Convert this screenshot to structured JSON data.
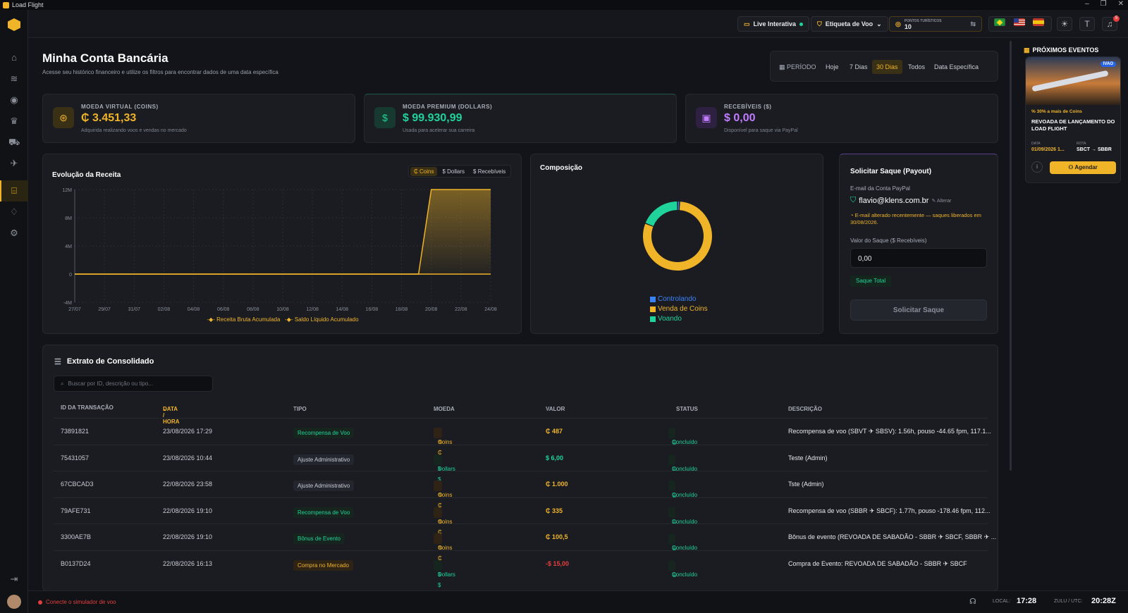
{
  "app": {
    "title": "Load Flight"
  },
  "topbar": {
    "live_label": "Live Interativa",
    "flight_tag_label": "Etiqueta de Voo",
    "points_label": "PONTOS TURÍSTICOS",
    "points_value": "10",
    "notifications_count": "5"
  },
  "page": {
    "title": "Minha Conta Bancária",
    "subtitle": "Acesse seu histórico financeiro e utilize os filtros para encontrar dados de uma data específica"
  },
  "period": {
    "label": "PERÍODO",
    "options": [
      "Hoje",
      "7 Dias",
      "30 Dias",
      "Todos",
      "Data Específica"
    ],
    "selected": "30 Dias"
  },
  "stats": [
    {
      "label": "MOEDA VIRTUAL (COINS)",
      "value": "₵ 3.451,33",
      "sub": "Adquirida realizando voos e vendas no mercado",
      "color": "#f0b429",
      "icon": "coins-icon"
    },
    {
      "label": "MOEDA PREMIUM (DOLLARS)",
      "value": "$ 99.930,99",
      "sub": "Usada para acelerar sua carreira",
      "color": "#1fd39a",
      "icon": "dollar-icon"
    },
    {
      "label": "RECEBÍVEIS ($)",
      "value": "$ 0,00",
      "sub": "Disponível para saque via PayPal",
      "color": "#c07bff",
      "icon": "wallet-icon"
    }
  ],
  "revenue_chart": {
    "title": "Evolução da Receita",
    "tabs": [
      "₵ Coins",
      "$ Dollars",
      "$ Recebíveis"
    ],
    "active_tab": "₵ Coins",
    "legend": [
      "Receita Bruta Acumulada",
      "Saldo Líquido Acumulado"
    ]
  },
  "chart_data": [
    {
      "type": "area",
      "title": "Evolução da Receita",
      "categories": [
        "27/07",
        "29/07",
        "31/07",
        "02/08",
        "04/08",
        "06/08",
        "08/08",
        "10/08",
        "12/08",
        "14/08",
        "16/08",
        "18/08",
        "20/08",
        "22/08",
        "24/08"
      ],
      "y_ticks": [
        "12M",
        "8M",
        "4M",
        "0",
        "-4M"
      ],
      "ylim": [
        -4000000,
        12000000
      ],
      "series": [
        {
          "name": "Receita Bruta Acumulada",
          "values": [
            0,
            0,
            0,
            0,
            0,
            0,
            0,
            0,
            0,
            0,
            0,
            0,
            12000000,
            12000000,
            12000000
          ],
          "color": "#f0b429"
        },
        {
          "name": "Saldo Líquido Acumulado",
          "values": [
            0,
            0,
            0,
            0,
            0,
            0,
            0,
            0,
            0,
            0,
            0,
            0,
            0,
            0,
            0
          ],
          "color": "#f0b429"
        }
      ]
    },
    {
      "type": "pie",
      "title": "Composição",
      "categories": [
        "Controlando",
        "Venda de Coins",
        "Voando"
      ],
      "values": [
        1,
        80,
        19
      ],
      "colors": [
        "#3b82f6",
        "#f0b429",
        "#1fd39a"
      ]
    }
  ],
  "composition": {
    "title": "Composição"
  },
  "payout": {
    "title": "Solicitar Saque (Payout)",
    "email_label": "E-mail da Conta PayPal",
    "email": "flavio@klens.com.br",
    "change": "Alterar",
    "warning": "E-mail alterado recentemente — saques liberados em 30/08/2026.",
    "value_label": "Valor do Saque ($ Recebíveis)",
    "value": "0,00",
    "total_btn": "Saque Total",
    "submit_btn": "Solicitar Saque"
  },
  "events": {
    "title": "PRÓXIMOS EVENTOS",
    "badge": "IVAO",
    "promo": "30% a mais de Coins",
    "name": "REVOADA DE LANÇAMENTO DO LOAD FLIGHT",
    "date_label": "DATA",
    "date": "01/09/2026 1...",
    "route_label": "ROTA",
    "route": "SBCT → SBBR",
    "schedule_btn": "Agendar"
  },
  "statement": {
    "title": "Extrato de Consolidado",
    "search_placeholder": "Buscar por ID, descrição ou tipo...",
    "columns": [
      "ID DA TRANSAÇÃO",
      "DATA / HORA",
      "TIPO",
      "MOEDA",
      "VALOR",
      "STATUS",
      "DESCRIÇÃO"
    ],
    "rows": [
      {
        "id": "73891821",
        "date": "23/08/2026 17:29",
        "type": "Recompensa de Voo",
        "currency": "Coins ₵",
        "value": "₵ 487",
        "status": "Concluído",
        "desc": "Recompensa de voo (SBVT ✈ SBSV): 1.56h, pouso -44.65 fpm, 117.1..."
      },
      {
        "id": "75431057",
        "date": "23/08/2026 10:44",
        "type": "Ajuste Administrativo",
        "currency": "Dollars $",
        "value": "$ 6,00",
        "status": "Concluído",
        "desc": "Teste (Admin)"
      },
      {
        "id": "67CBCAD3",
        "date": "22/08/2026 23:58",
        "type": "Ajuste Administrativo",
        "currency": "Coins ₵",
        "value": "₵ 1.000",
        "status": "Concluído",
        "desc": "Tste (Admin)"
      },
      {
        "id": "79AFE731",
        "date": "22/08/2026 19:10",
        "type": "Recompensa de Voo",
        "currency": "Coins ₵",
        "value": "₵ 335",
        "status": "Concluído",
        "desc": "Recompensa de voo (SBBR ✈ SBCF): 1.77h, pouso -178.46 fpm, 112..."
      },
      {
        "id": "3300AE7B",
        "date": "22/08/2026 19:10",
        "type": "Bônus de Evento",
        "currency": "Coins ₵",
        "value": "₵ 100,5",
        "status": "Concluído",
        "desc": "Bônus de evento (REVOADA DE SABADÃO - SBBR ✈ SBCF, SBBR ✈ ..."
      },
      {
        "id": "B0137D24",
        "date": "22/08/2026 16:13",
        "type": "Compra no Mercado",
        "currency": "Dollars $",
        "value": "-$ 15,00",
        "status": "Concluído",
        "desc": "Compra de Evento: REVOADA DE SABADÃO - SBBR ✈ SBCF"
      }
    ]
  },
  "footer": {
    "sim_status": "Conecte o simulador de voo",
    "local_label": "LOCAL:",
    "local_time": "17:28",
    "zulu_label": "ZULU / UTC:",
    "zulu_time": "20:28Z"
  }
}
